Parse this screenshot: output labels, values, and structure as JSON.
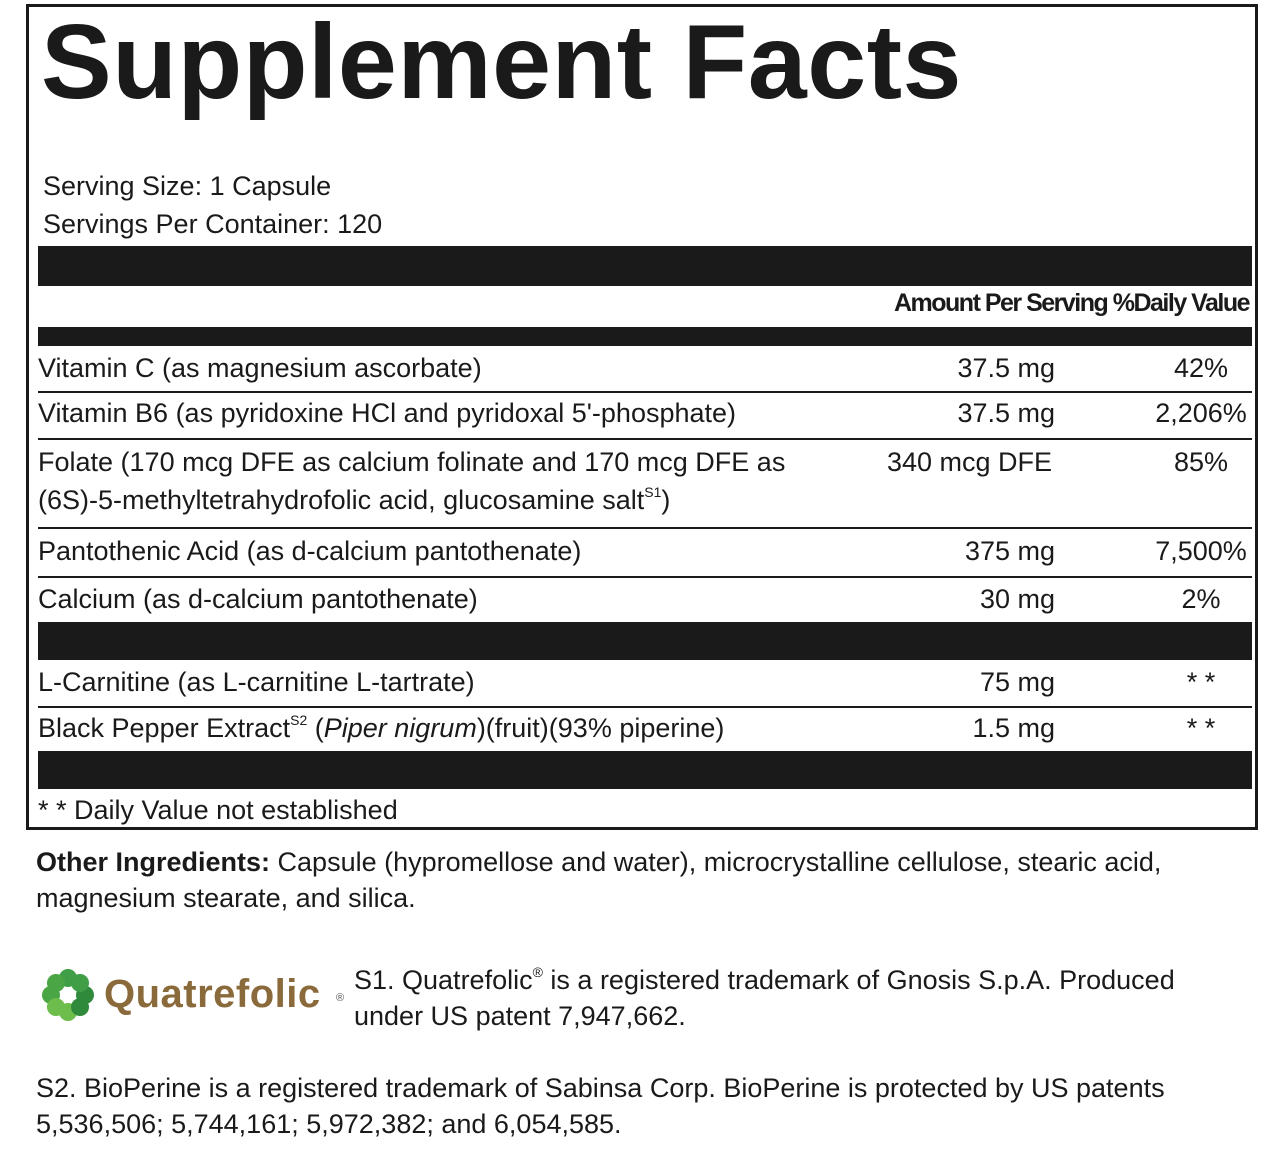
{
  "title": "Supplement Facts",
  "serving_size": "Serving Size: 1 Capsule",
  "servings_per_container": "Servings Per Container: 120",
  "header": {
    "amount": "Amount Per Serving",
    "dv": "%Daily Value"
  },
  "rows": [
    {
      "name": "Vitamin C (as magnesium ascorbate)",
      "amount": "37.5 mg",
      "dv": "42%"
    },
    {
      "name": "Vitamin B6 (as pyridoxine HCl and pyridoxal 5'-phosphate)",
      "amount": "37.5 mg",
      "dv": "2,206%"
    },
    {
      "name_line1": "Folate (170 mcg DFE as calcium folinate and 170 mcg DFE as",
      "name_line2": "(6S)-5-methyltetrahydrofolic acid, glucosamine salt",
      "name_sup": "S1",
      "name_close": ")",
      "amount": "340 mcg DFE",
      "dv": "85%"
    },
    {
      "name": "Pantothenic Acid (as d-calcium pantothenate)",
      "amount": "375 mg",
      "dv": "7,500%"
    },
    {
      "name": "Calcium (as d-calcium pantothenate)",
      "amount": "30 mg",
      "dv": "2%"
    },
    {
      "name": "L-Carnitine (as L-carnitine L-tartrate)",
      "amount": "75 mg",
      "dv": "* *"
    },
    {
      "name_pre": "Black Pepper Extract",
      "name_sup": "S2",
      "name_italic_pre": " (",
      "name_italic": "Piper nigrum",
      "name_post": ")(fruit)(93% piperine)",
      "amount": "1.5 mg",
      "dv": "* *"
    }
  ],
  "footnote": "* * Daily Value not established",
  "other_ingredients": {
    "label": "Other Ingredients:",
    "text": " Capsule (hypromellose and water), microcrystalline cellulose, stearic acid, magnesium stearate, and silica."
  },
  "logo": {
    "text": "Quatrefolic",
    "reg": "®",
    "colors": [
      "#3f9e46",
      "#2f8a3b",
      "#6cbd4b",
      "#4aa544"
    ]
  },
  "s1": {
    "pre": "S1. Quatrefolic",
    "reg": "®",
    "post": " is a registered trademark of Gnosis S.p.A. Produced under US patent 7,947,662."
  },
  "s2": "S2. BioPerine is a registered trademark of Sabinsa Corp. BioPerine is protected by US patents 5,536,506; 5,744,161; 5,972,382; and 6,054,585."
}
